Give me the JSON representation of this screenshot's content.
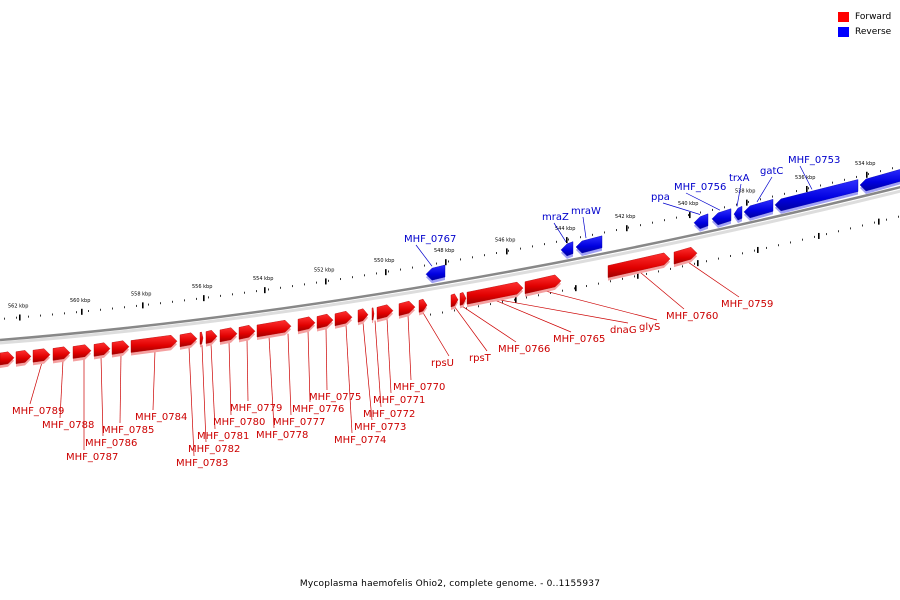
{
  "legend": {
    "forward": {
      "label": "Forward",
      "color": "#ff0000"
    },
    "reverse": {
      "label": "Reverse",
      "color": "#0000ff"
    }
  },
  "caption": "Mycoplasma haemofelis Ohio2, complete genome. - 0..1155937",
  "scale_labels": [
    "562 kbp",
    "560 kbp",
    "558 kbp",
    "556 kbp",
    "554 kbp",
    "552 kbp",
    "550 kbp",
    "548 kbp",
    "546 kbp",
    "544 kbp",
    "542 kbp",
    "540 kbp",
    "538 kbp",
    "536 kbp",
    "534 kbp"
  ],
  "reverse_genes": [
    "MHF_0767",
    "mraZ",
    "mraW",
    "ppa",
    "MHF_0756",
    "trxA",
    "gatC",
    "MHF_0753"
  ],
  "forward_genes": [
    "MHF_0789",
    "MHF_0788",
    "MHF_0787",
    "MHF_0786",
    "MHF_0785",
    "MHF_0784",
    "MHF_0783",
    "MHF_0782",
    "MHF_0781",
    "MHF_0780",
    "MHF_0779",
    "MHF_0778",
    "MHF_0777",
    "MHF_0776",
    "MHF_0775",
    "MHF_0774",
    "MHF_0773",
    "MHF_0772",
    "MHF_0771",
    "MHF_0770",
    "rpsU",
    "rpsT",
    "MHF_0766",
    "MHF_0765",
    "dnaG",
    "glyS",
    "MHF_0760",
    "MHF_0759"
  ]
}
